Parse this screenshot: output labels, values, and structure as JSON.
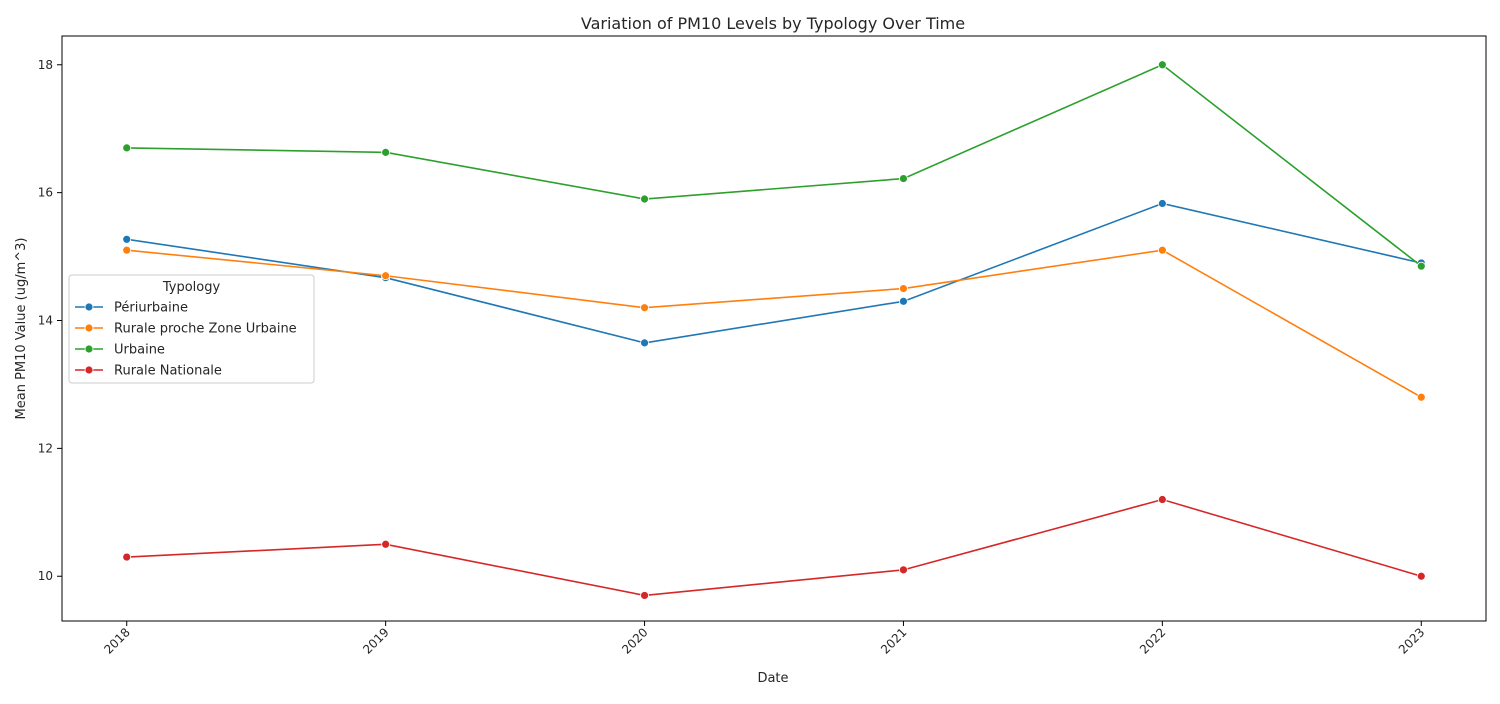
{
  "chart_data": {
    "type": "line",
    "title": "Variation of PM10 Levels by Typology Over Time",
    "xlabel": "Date",
    "ylabel": "Mean PM10 Value (ug/m^3)",
    "x": [
      "2018",
      "2019",
      "2020",
      "2021",
      "2022",
      "2023"
    ],
    "xlim": [
      2017.75,
      2023.25
    ],
    "ylim": [
      9.3,
      18.45
    ],
    "yticks": [
      "10",
      "12",
      "14",
      "16",
      "18"
    ],
    "grid": false,
    "legend": {
      "title": "Typology",
      "placement": "center-left"
    },
    "series": [
      {
        "name": "Périurbaine",
        "color": "#1f77b4",
        "values": [
          15.27,
          14.67,
          13.65,
          14.3,
          15.83,
          14.9
        ]
      },
      {
        "name": "Rurale proche Zone Urbaine",
        "color": "#ff7f0e",
        "values": [
          15.1,
          14.7,
          14.2,
          14.5,
          15.1,
          12.8
        ]
      },
      {
        "name": "Urbaine",
        "color": "#2ca02c",
        "values": [
          16.7,
          16.63,
          15.9,
          16.22,
          18.0,
          14.85
        ]
      },
      {
        "name": "Rurale Nationale",
        "color": "#d62728",
        "values": [
          10.3,
          10.5,
          9.7,
          10.1,
          11.2,
          10.0
        ]
      }
    ]
  }
}
